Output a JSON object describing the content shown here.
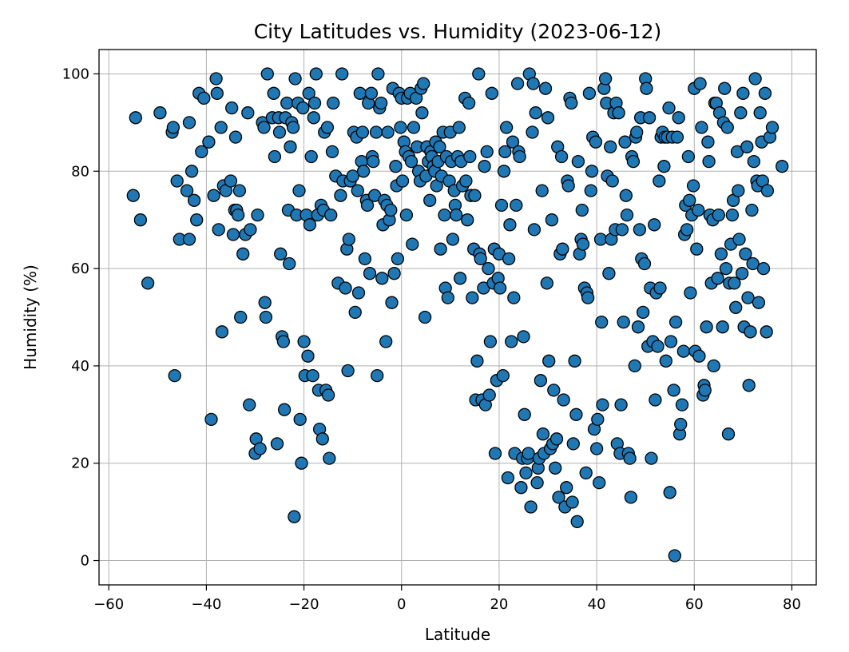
{
  "chart_data": {
    "type": "scatter",
    "title": "City Latitudes vs. Humidity (2023-06-12)",
    "xlabel": "Latitude",
    "ylabel": "Humidity (%)",
    "xlim": [
      -62,
      85
    ],
    "ylim": [
      -5,
      105
    ],
    "xticks": [
      -60,
      -40,
      -20,
      0,
      20,
      40,
      60,
      80
    ],
    "yticks": [
      0,
      20,
      40,
      60,
      80,
      100
    ],
    "grid": true,
    "marker_color": "#1f77b4",
    "edge_color": "#000000",
    "points": [
      [
        -55,
        75
      ],
      [
        -54.5,
        91
      ],
      [
        -53.5,
        70
      ],
      [
        -52,
        57
      ],
      [
        -49.5,
        92
      ],
      [
        -47,
        88
      ],
      [
        -46.8,
        89
      ],
      [
        -46.5,
        38
      ],
      [
        -46,
        78
      ],
      [
        -45.5,
        66
      ],
      [
        -44,
        76
      ],
      [
        -43.5,
        90
      ],
      [
        -43.5,
        66
      ],
      [
        -43,
        80
      ],
      [
        -42.5,
        74
      ],
      [
        -42,
        70
      ],
      [
        -41.5,
        96
      ],
      [
        -41,
        84
      ],
      [
        -40.5,
        95
      ],
      [
        -39.5,
        86
      ],
      [
        -39,
        29
      ],
      [
        -38.5,
        75
      ],
      [
        -38,
        99
      ],
      [
        -37.8,
        96
      ],
      [
        -37.5,
        68
      ],
      [
        -37,
        89
      ],
      [
        -36.8,
        47
      ],
      [
        -36.5,
        77
      ],
      [
        -36,
        76
      ],
      [
        -35,
        78
      ],
      [
        -34.8,
        93
      ],
      [
        -34.5,
        67
      ],
      [
        -34.2,
        72
      ],
      [
        -34,
        87
      ],
      [
        -33.8,
        72
      ],
      [
        -33.5,
        71
      ],
      [
        -33.2,
        76
      ],
      [
        -33,
        50
      ],
      [
        -32.5,
        63
      ],
      [
        -32,
        67
      ],
      [
        -31.5,
        92
      ],
      [
        -31.2,
        32
      ],
      [
        -31,
        68
      ],
      [
        -30,
        22
      ],
      [
        -29.8,
        25
      ],
      [
        -29.5,
        71
      ],
      [
        -29,
        23
      ],
      [
        -28.5,
        90
      ],
      [
        -28.2,
        89
      ],
      [
        -28,
        53
      ],
      [
        -27.8,
        50
      ],
      [
        -27.5,
        100
      ],
      [
        -26.5,
        91
      ],
      [
        -26.2,
        96
      ],
      [
        -26,
        83
      ],
      [
        -25.5,
        24
      ],
      [
        -25.2,
        91
      ],
      [
        -25,
        88
      ],
      [
        -24.8,
        63
      ],
      [
        -24.5,
        46
      ],
      [
        -24.2,
        45
      ],
      [
        -24,
        31
      ],
      [
        -23.8,
        91
      ],
      [
        -23.5,
        94
      ],
      [
        -23.2,
        72
      ],
      [
        -23,
        61
      ],
      [
        -22.8,
        85
      ],
      [
        -22.5,
        90
      ],
      [
        -22.2,
        89
      ],
      [
        -22,
        9
      ],
      [
        -21.8,
        99
      ],
      [
        -21.5,
        71
      ],
      [
        -21.2,
        94
      ],
      [
        -21,
        76
      ],
      [
        -20.8,
        29
      ],
      [
        -20.5,
        20
      ],
      [
        -20.2,
        93
      ],
      [
        -20,
        45
      ],
      [
        -19.8,
        38
      ],
      [
        -19.5,
        71
      ],
      [
        -19.2,
        42
      ],
      [
        -19,
        96
      ],
      [
        -18.8,
        69
      ],
      [
        -18.5,
        83
      ],
      [
        -18.2,
        38
      ],
      [
        -18,
        91
      ],
      [
        -17.8,
        94
      ],
      [
        -17.5,
        100
      ],
      [
        -17.2,
        71
      ],
      [
        -17,
        35
      ],
      [
        -16.8,
        27
      ],
      [
        -16.5,
        73
      ],
      [
        -16.2,
        25
      ],
      [
        -16,
        72
      ],
      [
        -15.8,
        88
      ],
      [
        -15.5,
        35
      ],
      [
        -15.2,
        89
      ],
      [
        -15,
        34
      ],
      [
        -14.8,
        21
      ],
      [
        -14.5,
        71
      ],
      [
        -14.2,
        84
      ],
      [
        -14,
        94
      ],
      [
        -13.5,
        79
      ],
      [
        -13,
        57
      ],
      [
        -12.5,
        75
      ],
      [
        -12.2,
        100
      ],
      [
        -12,
        78
      ],
      [
        -11.5,
        56
      ],
      [
        -11.2,
        64
      ],
      [
        -11,
        39
      ],
      [
        -10.8,
        66
      ],
      [
        -10.5,
        78
      ],
      [
        -10,
        79
      ],
      [
        -9.8,
        88
      ],
      [
        -9.5,
        51
      ],
      [
        -9.2,
        87
      ],
      [
        -9,
        76
      ],
      [
        -8.8,
        55
      ],
      [
        -8.5,
        96
      ],
      [
        -8.2,
        82
      ],
      [
        -8,
        88
      ],
      [
        -7.8,
        80
      ],
      [
        -7.5,
        62
      ],
      [
        -7.2,
        74
      ],
      [
        -7,
        73
      ],
      [
        -6.8,
        94
      ],
      [
        -6.5,
        59
      ],
      [
        -6.2,
        96
      ],
      [
        -6,
        83
      ],
      [
        -5.8,
        82
      ],
      [
        -5.5,
        75
      ],
      [
        -5.2,
        88
      ],
      [
        -5,
        38
      ],
      [
        -4.8,
        100
      ],
      [
        -4.5,
        93
      ],
      [
        -4.2,
        94
      ],
      [
        -4,
        58
      ],
      [
        -3.8,
        69
      ],
      [
        -3.5,
        74
      ],
      [
        -3.2,
        45
      ],
      [
        -3,
        73
      ],
      [
        -2.8,
        88
      ],
      [
        -2.5,
        70
      ],
      [
        -2.2,
        72
      ],
      [
        -2,
        53
      ],
      [
        -1.8,
        97
      ],
      [
        -1.5,
        59
      ],
      [
        -1.2,
        81
      ],
      [
        -1,
        77
      ],
      [
        -0.8,
        62
      ],
      [
        -0.5,
        96
      ],
      [
        -0.2,
        89
      ],
      [
        0,
        95
      ],
      [
        0.2,
        78
      ],
      [
        0.5,
        86
      ],
      [
        0.8,
        84
      ],
      [
        1,
        71
      ],
      [
        1.2,
        95
      ],
      [
        1.5,
        83
      ],
      [
        1.8,
        96
      ],
      [
        2,
        82
      ],
      [
        2.2,
        65
      ],
      [
        2.5,
        89
      ],
      [
        3,
        95
      ],
      [
        3.2,
        85
      ],
      [
        3.5,
        80
      ],
      [
        3.8,
        78
      ],
      [
        4,
        97
      ],
      [
        4.2,
        92
      ],
      [
        4.5,
        98
      ],
      [
        4.8,
        50
      ],
      [
        5,
        79
      ],
      [
        5.2,
        85
      ],
      [
        5.5,
        82
      ],
      [
        5.8,
        74
      ],
      [
        6,
        84
      ],
      [
        6.2,
        83
      ],
      [
        6.5,
        81
      ],
      [
        6.8,
        80
      ],
      [
        7,
        86
      ],
      [
        7.2,
        77
      ],
      [
        7.5,
        82
      ],
      [
        7.8,
        85
      ],
      [
        8,
        64
      ],
      [
        8.2,
        79
      ],
      [
        8.5,
        88
      ],
      [
        8.8,
        71
      ],
      [
        9,
        56
      ],
      [
        9.2,
        83
      ],
      [
        9.5,
        54
      ],
      [
        9.8,
        78
      ],
      [
        10,
        88
      ],
      [
        10.2,
        82
      ],
      [
        10.5,
        66
      ],
      [
        10.8,
        76
      ],
      [
        11,
        73
      ],
      [
        11.2,
        71
      ],
      [
        11.5,
        83
      ],
      [
        11.8,
        89
      ],
      [
        12,
        58
      ],
      [
        12.2,
        82
      ],
      [
        12.5,
        77
      ],
      [
        13,
        95
      ],
      [
        13.2,
        78
      ],
      [
        13.5,
        70
      ],
      [
        13.8,
        94
      ],
      [
        14,
        83
      ],
      [
        14.2,
        75
      ],
      [
        14.5,
        54
      ],
      [
        14.8,
        64
      ],
      [
        15,
        75
      ],
      [
        15.2,
        33
      ],
      [
        15.5,
        41
      ],
      [
        15.8,
        100
      ],
      [
        16,
        63
      ],
      [
        16.2,
        62
      ],
      [
        16.5,
        33
      ],
      [
        16.8,
        56
      ],
      [
        17,
        81
      ],
      [
        17.2,
        32
      ],
      [
        17.5,
        84
      ],
      [
        17.8,
        60
      ],
      [
        18,
        34
      ],
      [
        18.2,
        45
      ],
      [
        18.5,
        96
      ],
      [
        18.8,
        57
      ],
      [
        19,
        64
      ],
      [
        19.2,
        22
      ],
      [
        19.5,
        37
      ],
      [
        19.8,
        58
      ],
      [
        20,
        63
      ],
      [
        20.2,
        56
      ],
      [
        20.5,
        73
      ],
      [
        20.8,
        38
      ],
      [
        21,
        80
      ],
      [
        21.2,
        84
      ],
      [
        21.5,
        89
      ],
      [
        21.8,
        17
      ],
      [
        22,
        62
      ],
      [
        22.2,
        69
      ],
      [
        22.5,
        45
      ],
      [
        22.8,
        86
      ],
      [
        23,
        54
      ],
      [
        23.2,
        22
      ],
      [
        23.5,
        73
      ],
      [
        23.8,
        98
      ],
      [
        24,
        84
      ],
      [
        24.2,
        83
      ],
      [
        24.5,
        15
      ],
      [
        24.8,
        21
      ],
      [
        25,
        46
      ],
      [
        25.2,
        30
      ],
      [
        25.5,
        18
      ],
      [
        25.8,
        21
      ],
      [
        26,
        22
      ],
      [
        26.2,
        100
      ],
      [
        26.5,
        11
      ],
      [
        26.8,
        88
      ],
      [
        27,
        98
      ],
      [
        27.2,
        68
      ],
      [
        27.5,
        92
      ],
      [
        27.8,
        16
      ],
      [
        28,
        19
      ],
      [
        28.2,
        21
      ],
      [
        28.5,
        37
      ],
      [
        28.8,
        76
      ],
      [
        29,
        26
      ],
      [
        29.2,
        22
      ],
      [
        29.5,
        97
      ],
      [
        29.8,
        57
      ],
      [
        30,
        91
      ],
      [
        30.2,
        41
      ],
      [
        30.5,
        23
      ],
      [
        30.8,
        70
      ],
      [
        31,
        24
      ],
      [
        31.2,
        35
      ],
      [
        31.5,
        19
      ],
      [
        31.8,
        25
      ],
      [
        32,
        85
      ],
      [
        32.2,
        13
      ],
      [
        32.5,
        63
      ],
      [
        32.8,
        83
      ],
      [
        33,
        64
      ],
      [
        33.2,
        33
      ],
      [
        33.5,
        11
      ],
      [
        33.8,
        15
      ],
      [
        34,
        78
      ],
      [
        34.2,
        77
      ],
      [
        34.5,
        95
      ],
      [
        34.8,
        94
      ],
      [
        35,
        12
      ],
      [
        35.2,
        24
      ],
      [
        35.5,
        41
      ],
      [
        35.8,
        30
      ],
      [
        36,
        8
      ],
      [
        36.2,
        82
      ],
      [
        36.5,
        63
      ],
      [
        36.8,
        66
      ],
      [
        37,
        72
      ],
      [
        37.2,
        65
      ],
      [
        37.5,
        56
      ],
      [
        37.8,
        18
      ],
      [
        38,
        55
      ],
      [
        38.2,
        54
      ],
      [
        38.5,
        96
      ],
      [
        38.8,
        76
      ],
      [
        39,
        80
      ],
      [
        39.2,
        87
      ],
      [
        39.5,
        27
      ],
      [
        39.8,
        86
      ],
      [
        40,
        23
      ],
      [
        40.2,
        29
      ],
      [
        40.5,
        16
      ],
      [
        40.8,
        66
      ],
      [
        41,
        49
      ],
      [
        41.2,
        32
      ],
      [
        41.5,
        97
      ],
      [
        41.8,
        99
      ],
      [
        42,
        94
      ],
      [
        42.2,
        79
      ],
      [
        42.5,
        59
      ],
      [
        42.8,
        85
      ],
      [
        43,
        66
      ],
      [
        43.2,
        78
      ],
      [
        43.5,
        92
      ],
      [
        43.8,
        68
      ],
      [
        44,
        94
      ],
      [
        44.2,
        24
      ],
      [
        44.5,
        92
      ],
      [
        44.8,
        22
      ],
      [
        45,
        32
      ],
      [
        45.2,
        68
      ],
      [
        45.5,
        49
      ],
      [
        45.8,
        86
      ],
      [
        46,
        75
      ],
      [
        46.2,
        71
      ],
      [
        46.5,
        22
      ],
      [
        46.8,
        21
      ],
      [
        47,
        13
      ],
      [
        47.2,
        83
      ],
      [
        47.5,
        82
      ],
      [
        47.8,
        40
      ],
      [
        48,
        87
      ],
      [
        48.2,
        88
      ],
      [
        48.5,
        48
      ],
      [
        48.8,
        68
      ],
      [
        49,
        91
      ],
      [
        49.2,
        62
      ],
      [
        49.5,
        51
      ],
      [
        49.8,
        61
      ],
      [
        50,
        99
      ],
      [
        50.2,
        97
      ],
      [
        50.5,
        44
      ],
      [
        50.8,
        91
      ],
      [
        51,
        56
      ],
      [
        51.2,
        21
      ],
      [
        51.5,
        45
      ],
      [
        51.8,
        69
      ],
      [
        52,
        33
      ],
      [
        52.2,
        55
      ],
      [
        52.5,
        44
      ],
      [
        52.8,
        78
      ],
      [
        53,
        56
      ],
      [
        53.2,
        87
      ],
      [
        53.5,
        88
      ],
      [
        53.8,
        81
      ],
      [
        54,
        87
      ],
      [
        54.2,
        41
      ],
      [
        54.5,
        87
      ],
      [
        54.8,
        93
      ],
      [
        55,
        14
      ],
      [
        55.2,
        45
      ],
      [
        55.5,
        87
      ],
      [
        55.8,
        35
      ],
      [
        56,
        1
      ],
      [
        56.2,
        49
      ],
      [
        56.5,
        87
      ],
      [
        56.8,
        91
      ],
      [
        57,
        26
      ],
      [
        57.2,
        28
      ],
      [
        57.5,
        32
      ],
      [
        57.8,
        43
      ],
      [
        58,
        67
      ],
      [
        58.2,
        73
      ],
      [
        58.5,
        68
      ],
      [
        58.8,
        83
      ],
      [
        59,
        74
      ],
      [
        59.2,
        55
      ],
      [
        59.5,
        71
      ],
      [
        59.8,
        77
      ],
      [
        60,
        97
      ],
      [
        60.2,
        43
      ],
      [
        60.5,
        64
      ],
      [
        60.8,
        72
      ],
      [
        61,
        42
      ],
      [
        61.2,
        98
      ],
      [
        61.5,
        89
      ],
      [
        61.8,
        34
      ],
      [
        62,
        36
      ],
      [
        62.2,
        35
      ],
      [
        62.5,
        48
      ],
      [
        62.8,
        86
      ],
      [
        63,
        82
      ],
      [
        63.2,
        71
      ],
      [
        63.5,
        57
      ],
      [
        63.8,
        70
      ],
      [
        64,
        40
      ],
      [
        64.2,
        94
      ],
      [
        64.5,
        94
      ],
      [
        64.8,
        58
      ],
      [
        65,
        71
      ],
      [
        65.2,
        92
      ],
      [
        65.5,
        63
      ],
      [
        65.8,
        48
      ],
      [
        66,
        90
      ],
      [
        66.2,
        97
      ],
      [
        66.5,
        60
      ],
      [
        66.8,
        89
      ],
      [
        67,
        26
      ],
      [
        67.2,
        57
      ],
      [
        67.5,
        65
      ],
      [
        67.8,
        71
      ],
      [
        68,
        74
      ],
      [
        68.2,
        57
      ],
      [
        68.5,
        52
      ],
      [
        68.8,
        84
      ],
      [
        69,
        76
      ],
      [
        69.2,
        66
      ],
      [
        69.5,
        92
      ],
      [
        69.8,
        59
      ],
      [
        70,
        96
      ],
      [
        70.2,
        48
      ],
      [
        70.5,
        63
      ],
      [
        70.8,
        85
      ],
      [
        71,
        54
      ],
      [
        71.2,
        36
      ],
      [
        71.5,
        47
      ],
      [
        71.8,
        72
      ],
      [
        72,
        61
      ],
      [
        72.2,
        82
      ],
      [
        72.5,
        99
      ],
      [
        72.8,
        78
      ],
      [
        73,
        77
      ],
      [
        73.2,
        53
      ],
      [
        73.5,
        92
      ],
      [
        73.8,
        86
      ],
      [
        74,
        78
      ],
      [
        74.2,
        60
      ],
      [
        74.5,
        96
      ],
      [
        74.8,
        47
      ],
      [
        75,
        76
      ],
      [
        75.5,
        87
      ],
      [
        76,
        89
      ],
      [
        78,
        81
      ]
    ]
  }
}
